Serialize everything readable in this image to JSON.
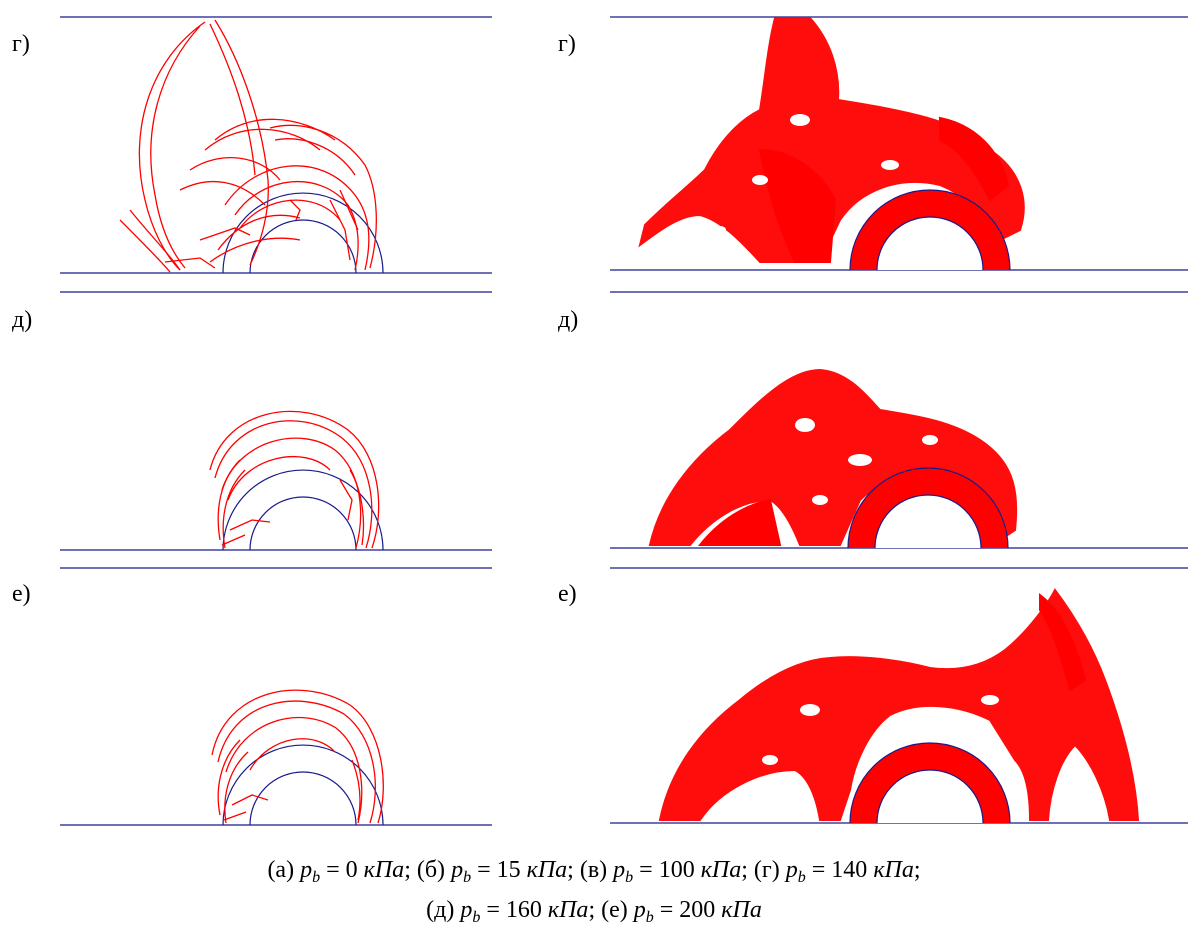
{
  "panels": {
    "row1_label": "г)",
    "row2_label": "д)",
    "row3_label": "е)"
  },
  "colors": {
    "crack_lines": "#ff0000",
    "geometry_lines": "#1a1a8c"
  },
  "caption": {
    "a_prefix": "(а) ",
    "b_prefix": "; (б) ",
    "v_prefix": "; (в) ",
    "g_prefix": "; (г) ",
    "d_prefix": "(д) ",
    "e_prefix": "; (е) ",
    "p": "p",
    "sub": "b",
    "a_val": " = 0 ",
    "b_val": " = 15 ",
    "v_val": " = 100 ",
    "g_val": " = 140 ",
    "d_val": " = 160 ",
    "e_val": " = 200 ",
    "unit": "кПа",
    "line1_end": ";"
  }
}
